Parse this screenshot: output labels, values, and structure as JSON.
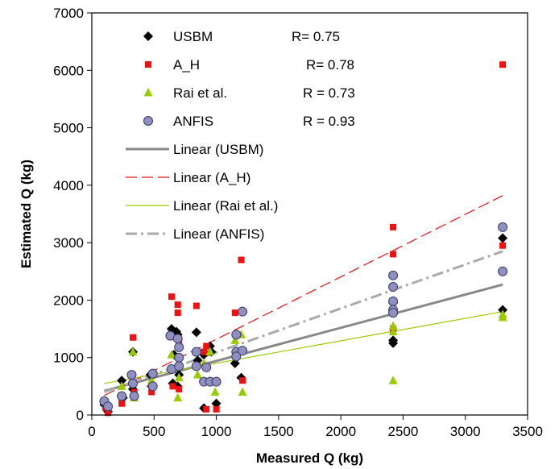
{
  "chart_data": {
    "type": "scatter",
    "xlabel": "Measured Q (kg)",
    "ylabel": "Estimated Q (kg)",
    "xlim": [
      0,
      3500
    ],
    "ylim": [
      0,
      7000
    ],
    "xticks": [
      0,
      500,
      1000,
      1500,
      2000,
      2500,
      3000,
      3500
    ],
    "yticks": [
      0,
      1000,
      2000,
      3000,
      4000,
      5000,
      6000,
      7000
    ],
    "grid": false,
    "legend_position": "top-left",
    "series": [
      {
        "name": "USBM",
        "marker": "diamond",
        "color": "#000000",
        "r_label": "R= 0.75",
        "points": [
          [
            100,
            180
          ],
          [
            120,
            100
          ],
          [
            130,
            60
          ],
          [
            240,
            600
          ],
          [
            250,
            300
          ],
          [
            330,
            1100
          ],
          [
            330,
            450
          ],
          [
            470,
            700
          ],
          [
            480,
            500
          ],
          [
            640,
            1500
          ],
          [
            650,
            550
          ],
          [
            660,
            1050
          ],
          [
            680,
            1450
          ],
          [
            690,
            1400
          ],
          [
            690,
            500
          ],
          [
            700,
            700
          ],
          [
            840,
            1440
          ],
          [
            850,
            950
          ],
          [
            900,
            1050
          ],
          [
            900,
            120
          ],
          [
            950,
            1200
          ],
          [
            960,
            1100
          ],
          [
            1000,
            200
          ],
          [
            1150,
            900
          ],
          [
            1170,
            1400
          ],
          [
            1200,
            1800
          ],
          [
            1200,
            650
          ],
          [
            2420,
            1950
          ],
          [
            2420,
            1300
          ],
          [
            2420,
            1250
          ],
          [
            3300,
            3080
          ],
          [
            3300,
            1830
          ]
        ]
      },
      {
        "name": "A_H",
        "marker": "square",
        "color": "#ee1111",
        "r_label": "R= 0.78",
        "points": [
          [
            110,
            130
          ],
          [
            130,
            40
          ],
          [
            240,
            200
          ],
          [
            330,
            1350
          ],
          [
            340,
            400
          ],
          [
            480,
            400
          ],
          [
            640,
            2060
          ],
          [
            650,
            500
          ],
          [
            690,
            1920
          ],
          [
            690,
            1780
          ],
          [
            700,
            1300
          ],
          [
            700,
            450
          ],
          [
            840,
            1900
          ],
          [
            900,
            1100
          ],
          [
            920,
            1200
          ],
          [
            920,
            100
          ],
          [
            1000,
            100
          ],
          [
            1150,
            1780
          ],
          [
            1200,
            2700
          ],
          [
            1210,
            600
          ],
          [
            2420,
            3270
          ],
          [
            2420,
            2800
          ],
          [
            2420,
            1500
          ],
          [
            3300,
            6100
          ],
          [
            3300,
            2950
          ]
        ]
      },
      {
        "name": "Rai et al.",
        "marker": "triangle",
        "color": "#99cc00",
        "r_label": "R = 0.73",
        "points": [
          [
            110,
            250
          ],
          [
            240,
            500
          ],
          [
            330,
            1100
          ],
          [
            340,
            300
          ],
          [
            480,
            600
          ],
          [
            640,
            1050
          ],
          [
            690,
            300
          ],
          [
            700,
            650
          ],
          [
            850,
            700
          ],
          [
            900,
            900
          ],
          [
            950,
            1100
          ],
          [
            990,
            400
          ],
          [
            1150,
            1300
          ],
          [
            1200,
            1400
          ],
          [
            1210,
            400
          ],
          [
            2420,
            1550
          ],
          [
            2420,
            1450
          ],
          [
            2420,
            600
          ],
          [
            3300,
            1750
          ],
          [
            3300,
            1700
          ]
        ]
      },
      {
        "name": "ANFIS",
        "marker": "circle",
        "color": "#9090c0",
        "r_label": "R = 0.93",
        "points": [
          [
            100,
            240
          ],
          [
            130,
            150
          ],
          [
            240,
            330
          ],
          [
            320,
            700
          ],
          [
            330,
            550
          ],
          [
            340,
            330
          ],
          [
            490,
            720
          ],
          [
            490,
            500
          ],
          [
            630,
            1380
          ],
          [
            640,
            800
          ],
          [
            690,
            1330
          ],
          [
            700,
            1180
          ],
          [
            700,
            1000
          ],
          [
            700,
            850
          ],
          [
            840,
            1100
          ],
          [
            840,
            850
          ],
          [
            900,
            580
          ],
          [
            920,
            830
          ],
          [
            950,
            580
          ],
          [
            1000,
            580
          ],
          [
            1160,
            1400
          ],
          [
            1160,
            1100
          ],
          [
            1160,
            1020
          ],
          [
            1210,
            1800
          ],
          [
            1210,
            1120
          ],
          [
            2420,
            2430
          ],
          [
            2420,
            2230
          ],
          [
            2420,
            1980
          ],
          [
            2420,
            1830
          ],
          [
            2420,
            1780
          ],
          [
            3300,
            3270
          ],
          [
            3300,
            2500
          ]
        ]
      }
    ],
    "fits": [
      {
        "name": "Linear (USBM)",
        "color": "#888888",
        "dash": "solid",
        "width": 3,
        "points": [
          [
            100,
            420
          ],
          [
            3300,
            2270
          ]
        ]
      },
      {
        "name": "Linear (A_H)",
        "color": "#ee1111",
        "dash": "dashed",
        "width": 1.2,
        "points": [
          [
            100,
            340
          ],
          [
            3300,
            3820
          ]
        ]
      },
      {
        "name": "Linear (Rai et al.)",
        "color": "#99cc00",
        "dash": "solid",
        "width": 1.2,
        "points": [
          [
            100,
            550
          ],
          [
            3300,
            1800
          ]
        ]
      },
      {
        "name": "Linear (ANFIS)",
        "color": "#aaaaaa",
        "dash": "dashdot",
        "width": 3,
        "points": [
          [
            100,
            400
          ],
          [
            3300,
            2850
          ]
        ]
      }
    ]
  }
}
